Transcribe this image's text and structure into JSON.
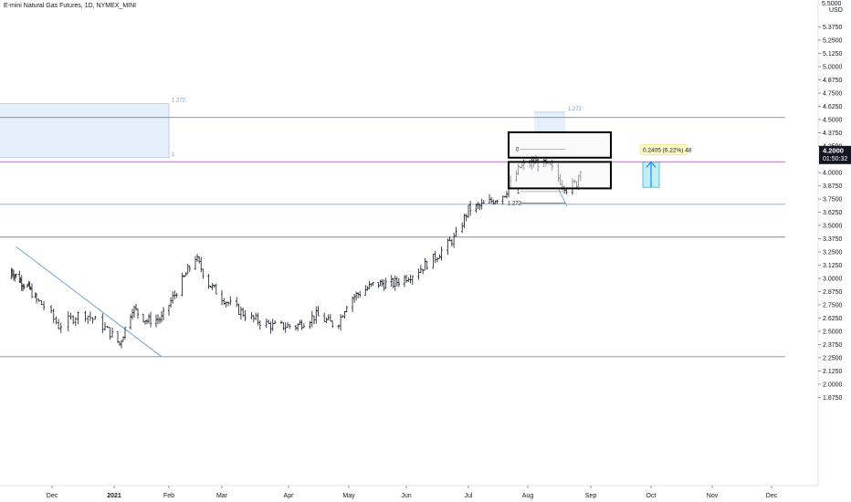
{
  "header": {
    "symbol_title": "E-mini Natural Gas Futures, 1D, NYMEX_MINI",
    "currency": "USD",
    "top_value": "5.5000"
  },
  "price_axis": {
    "ticks": [
      "5.3750",
      "5.2500",
      "5.1250",
      "5.0000",
      "4.8750",
      "4.7500",
      "4.6250",
      "4.5000",
      "4.3750",
      "4.2500",
      "4.0000",
      "3.8750",
      "3.7500",
      "3.6250",
      "3.5000",
      "3.3750",
      "3.2500",
      "3.1250",
      "3.0000",
      "2.8750",
      "2.7500",
      "2.6250",
      "2.5000",
      "2.3750",
      "2.2500",
      "2.1250",
      "2.0000",
      "1.8750"
    ],
    "current_price": "4.2000",
    "countdown": "01:50:32"
  },
  "time_axis": {
    "labels": [
      "Dec",
      "2021",
      "Feb",
      "Mar",
      "Apr",
      "May",
      "Jun",
      "Jul",
      "Aug",
      "Sep",
      "Oct",
      "Nov",
      "Dec"
    ]
  },
  "annotations": {
    "fib_upper_left": "1.272",
    "fib_lower_left": "1",
    "fib_upper_right": "1.272",
    "fib_zero": "0",
    "fib_one": "1",
    "fib_lower_right": "1.272",
    "measure_label": "0.2405 (6.22%) 48"
  },
  "colors": {
    "candle": "#131722",
    "trendline": "#5b9bd5",
    "pink_level": "#e040fb",
    "blue_level": "#6a9fd8",
    "gray_level": "#787b86",
    "price_tag": "#131722",
    "measure_label_bg": "#fff9c4",
    "measure_fill": "#b2ebf2"
  },
  "chart_data": {
    "type": "candlestick",
    "title": "E-mini Natural Gas Futures, 1D, NYMEX_MINI",
    "y_unit": "USD",
    "ylim": [
      1.82,
      5.44
    ],
    "x_range": [
      "2020-11-15",
      "2021-12-31"
    ],
    "last_price": 4.2,
    "horizontal_levels": [
      {
        "price": 4.52,
        "color": "gray"
      },
      {
        "price": 4.1,
        "color": "pink"
      },
      {
        "price": 3.7,
        "color": "blue"
      },
      {
        "price": 3.39,
        "color": "gray"
      },
      {
        "price": 2.26,
        "color": "gray"
      }
    ],
    "trendline": {
      "from": [
        "2020-11-13",
        3.3
      ],
      "to": [
        "2021-01-28",
        2.26
      ]
    },
    "boxes": [
      {
        "from": "2021-07-22",
        "to": "2021-09-11",
        "top": 4.38,
        "bottom": 4.14
      },
      {
        "from": "2021-07-22",
        "to": "2021-09-11",
        "top": 4.1,
        "bottom": 3.85
      }
    ],
    "measure": {
      "date": "2021-10-01",
      "from": 3.86,
      "to": 4.1,
      "label": "0.2405 (6.22%) 48"
    },
    "fib_levels_left": {
      "from": "2020-11-15",
      "to": "2021-02-01",
      "levels": [
        {
          "ratio": "1.272",
          "price": 4.65
        },
        {
          "ratio": "1",
          "price": 4.14
        }
      ]
    },
    "price_path": [
      {
        "date": "2020-11-15",
        "price": 3.0
      },
      {
        "date": "2020-11-25",
        "price": 2.9
      },
      {
        "date": "2020-12-05",
        "price": 2.72
      },
      {
        "date": "2020-12-10",
        "price": 2.55
      },
      {
        "date": "2020-12-20",
        "price": 2.68
      },
      {
        "date": "2020-12-28",
        "price": 2.55
      },
      {
        "date": "2021-01-05",
        "price": 2.38
      },
      {
        "date": "2021-01-12",
        "price": 2.72
      },
      {
        "date": "2021-01-20",
        "price": 2.6
      },
      {
        "date": "2021-01-28",
        "price": 2.62
      },
      {
        "date": "2021-02-05",
        "price": 2.88
      },
      {
        "date": "2021-02-15",
        "price": 3.2
      },
      {
        "date": "2021-02-22",
        "price": 2.95
      },
      {
        "date": "2021-03-05",
        "price": 2.75
      },
      {
        "date": "2021-03-15",
        "price": 2.62
      },
      {
        "date": "2021-03-25",
        "price": 2.55
      },
      {
        "date": "2021-04-05",
        "price": 2.55
      },
      {
        "date": "2021-04-15",
        "price": 2.65
      },
      {
        "date": "2021-04-25",
        "price": 2.55
      },
      {
        "date": "2021-05-01",
        "price": 2.8
      },
      {
        "date": "2021-05-15",
        "price": 2.95
      },
      {
        "date": "2021-05-25",
        "price": 2.95
      },
      {
        "date": "2021-06-05",
        "price": 3.05
      },
      {
        "date": "2021-06-15",
        "price": 3.2
      },
      {
        "date": "2021-06-25",
        "price": 3.4
      },
      {
        "date": "2021-07-01",
        "price": 3.65
      },
      {
        "date": "2021-07-10",
        "price": 3.7
      },
      {
        "date": "2021-07-20",
        "price": 3.8
      },
      {
        "date": "2021-07-28",
        "price": 4.05
      },
      {
        "date": "2021-08-05",
        "price": 4.1
      },
      {
        "date": "2021-08-12",
        "price": 4.05
      },
      {
        "date": "2021-08-20",
        "price": 3.85
      },
      {
        "date": "2021-08-25",
        "price": 3.9
      },
      {
        "date": "2021-08-29",
        "price": 4.2
      }
    ]
  }
}
